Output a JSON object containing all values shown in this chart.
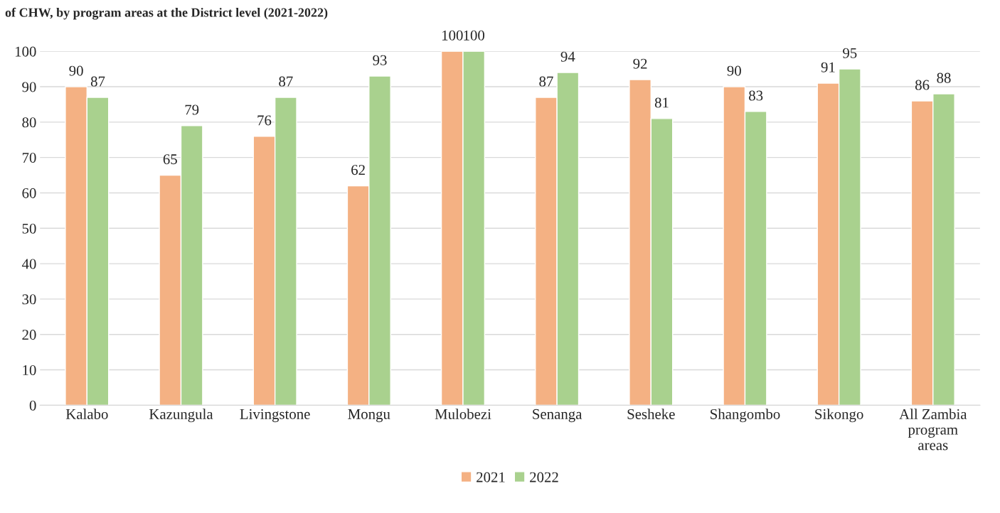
{
  "chart_data": {
    "type": "bar",
    "title": "of CHW, by program areas at the District level (2021-2022)",
    "categories": [
      "Kalabo",
      "Kazungula",
      "Livingstone",
      "Mongu",
      "Mulobezi",
      "Senanga",
      "Sesheke",
      "Shangombo",
      "Sikongo",
      "All Zambia program areas"
    ],
    "series": [
      {
        "name": "2021",
        "color": "#f4b183",
        "values": [
          90,
          65,
          76,
          62,
          100,
          87,
          92,
          90,
          91,
          86
        ]
      },
      {
        "name": "2022",
        "color": "#a9d18e",
        "values": [
          87,
          79,
          87,
          93,
          100,
          94,
          81,
          83,
          95,
          88
        ]
      }
    ],
    "ylim": [
      0,
      100
    ],
    "yticks": [
      0,
      10,
      20,
      30,
      40,
      50,
      60,
      70,
      80,
      90,
      100
    ],
    "grid": "y",
    "legend": "bottom",
    "data_labels": true
  }
}
